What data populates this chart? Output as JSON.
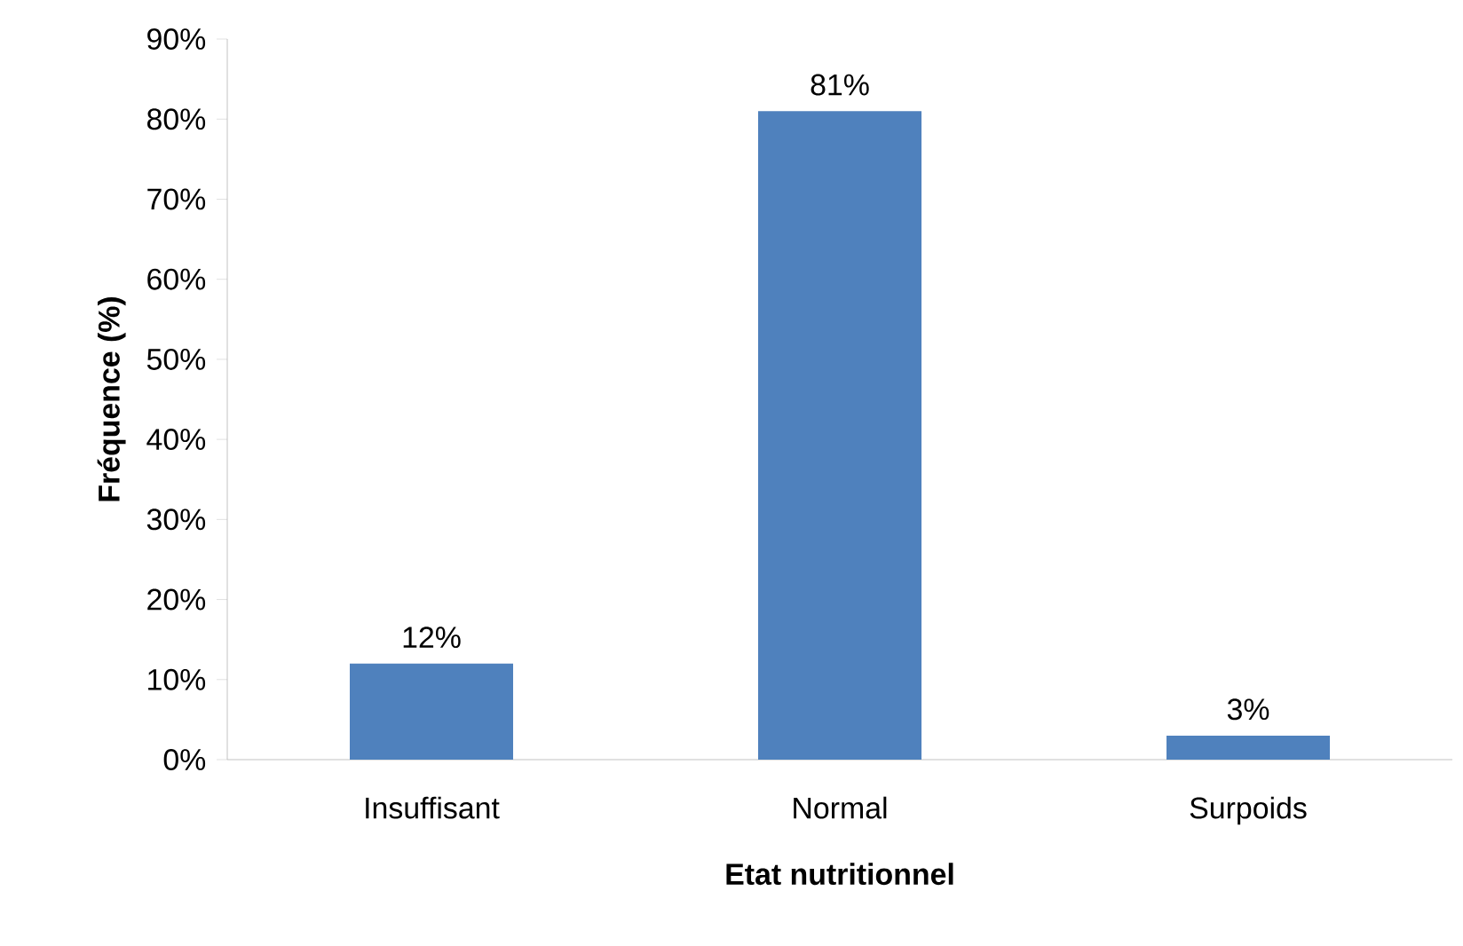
{
  "chart_data": {
    "type": "bar",
    "xlabel": "Etat nutritionnel",
    "ylabel": "Fréquence (%)",
    "categories": [
      "Insuffisant",
      "Normal",
      "Surpoids"
    ],
    "values": [
      12,
      81,
      3
    ],
    "value_labels": [
      "12%",
      "81%",
      "3%"
    ],
    "color": "#4f81bd",
    "ylim": [
      0,
      90
    ],
    "yticks": [
      {
        "value": 0,
        "label": "0%"
      },
      {
        "value": 10,
        "label": "10%"
      },
      {
        "value": 20,
        "label": "20%"
      },
      {
        "value": 30,
        "label": "30%"
      },
      {
        "value": 40,
        "label": "40%"
      },
      {
        "value": 50,
        "label": "50%"
      },
      {
        "value": 60,
        "label": "60%"
      },
      {
        "value": 70,
        "label": "70%"
      },
      {
        "value": 80,
        "label": "80%"
      },
      {
        "value": 90,
        "label": "90%"
      }
    ]
  }
}
